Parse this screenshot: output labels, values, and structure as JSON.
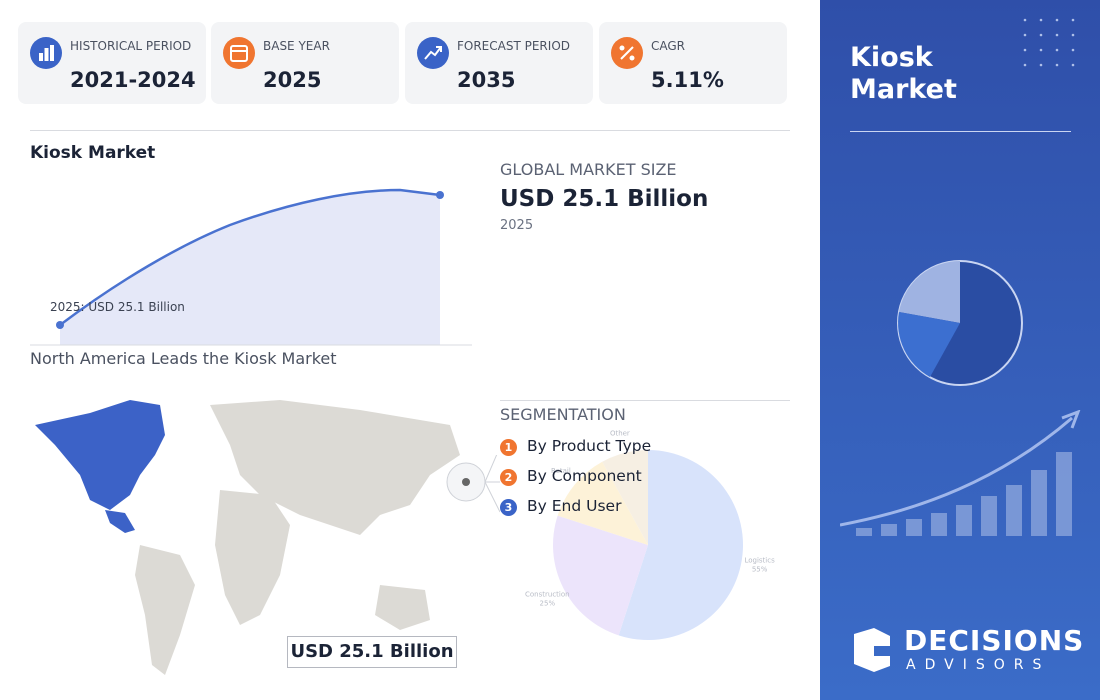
{
  "stats": [
    {
      "label": "HISTORICAL PERIOD",
      "value": "2021-2024"
    },
    {
      "label": "BASE YEAR",
      "value": "2025"
    },
    {
      "label": "FORECAST PERIOD",
      "value": "2035"
    },
    {
      "label": "CAGR",
      "value": "5.11%"
    }
  ],
  "trend": {
    "title": "Kiosk Market",
    "annotation": "2025: USD 25.1 Billion"
  },
  "market_size": {
    "label": "GLOBAL MARKET SIZE",
    "value": "USD 25.1 Billion",
    "year": "2025"
  },
  "map": {
    "title": "North America Leads the Kiosk Market",
    "badge": "USD 25.1 Billion"
  },
  "segmentation": {
    "title": "SEGMENTATION",
    "items": [
      {
        "number": "1",
        "label": "By Product Type"
      },
      {
        "number": "2",
        "label": "By Component"
      },
      {
        "number": "3",
        "label": "By End User"
      }
    ]
  },
  "chart_data": {
    "type": "pie",
    "categories": [
      "Logistics",
      "Construction",
      "Retail",
      "Other"
    ],
    "values": [
      55,
      25,
      12,
      8
    ],
    "value_labels": [
      "55%",
      "25%",
      null,
      null
    ],
    "colors": [
      "#d8e3fb",
      "#ece4fb",
      "#fdf2d8",
      "#f6efe3"
    ]
  },
  "sidebar": {
    "title": "Kiosk Market",
    "brand": "DECISIONS",
    "brand_sub": "ADVISORS"
  }
}
